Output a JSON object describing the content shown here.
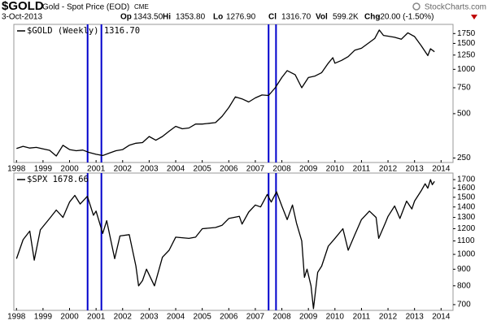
{
  "header": {
    "symbol": "$GOLD",
    "name": "Gold - Spot Price (EOD)",
    "exchange": "CME",
    "date": "3-Oct-2013",
    "quote": [
      {
        "label": "Op",
        "value": "1343.50"
      },
      {
        "label": "Hi",
        "value": "1353.80"
      },
      {
        "label": "Lo",
        "value": "1276.90"
      },
      {
        "label": "Cl",
        "value": "1316.70"
      },
      {
        "label": "Vol",
        "value": "599.2K"
      },
      {
        "label": "Chg",
        "value": "-20.00 (-1.50%)"
      }
    ],
    "watermark": "StockCharts.com"
  },
  "chart_data": [
    {
      "type": "line",
      "log_scale": true,
      "series": [
        {
          "name": "$GOLD (Weekly) 1316.70",
          "color": "#000000",
          "x": [
            1998.0,
            1998.25,
            1998.5,
            1998.75,
            1999.0,
            1999.25,
            1999.5,
            1999.75,
            2000.0,
            2000.25,
            2000.5,
            2000.75,
            2001.0,
            2001.25,
            2001.5,
            2001.75,
            2002.0,
            2002.25,
            2002.5,
            2002.75,
            2003.0,
            2003.25,
            2003.5,
            2003.75,
            2004.0,
            2004.25,
            2004.5,
            2004.75,
            2005.0,
            2005.25,
            2005.5,
            2005.75,
            2006.0,
            2006.25,
            2006.5,
            2006.75,
            2007.0,
            2007.25,
            2007.5,
            2007.75,
            2008.0,
            2008.2,
            2008.5,
            2008.75,
            2009.0,
            2009.25,
            2009.5,
            2009.75,
            2009.92,
            2010.0,
            2010.25,
            2010.5,
            2010.75,
            2011.0,
            2011.25,
            2011.5,
            2011.67,
            2011.83,
            2012.0,
            2012.25,
            2012.5,
            2012.75,
            2013.0,
            2013.25,
            2013.5,
            2013.6,
            2013.75
          ],
          "values": [
            290,
            300,
            292,
            295,
            288,
            282,
            258,
            305,
            285,
            280,
            283,
            272,
            265,
            260,
            270,
            280,
            285,
            305,
            315,
            318,
            350,
            330,
            350,
            380,
            410,
            395,
            400,
            425,
            425,
            430,
            435,
            480,
            550,
            650,
            630,
            600,
            640,
            670,
            665,
            750,
            880,
            980,
            920,
            750,
            880,
            900,
            950,
            1100,
            1200,
            1100,
            1150,
            1220,
            1350,
            1390,
            1500,
            1620,
            1850,
            1700,
            1680,
            1650,
            1600,
            1770,
            1670,
            1450,
            1240,
            1380,
            1316.7
          ]
        }
      ],
      "xlim": [
        1997.9,
        2014.45
      ],
      "xticks": [
        1998,
        1999,
        2000,
        2001,
        2002,
        2003,
        2004,
        2005,
        2006,
        2007,
        2008,
        2009,
        2010,
        2011,
        2012,
        2013,
        2014
      ],
      "ylim": [
        233,
        2020
      ],
      "yticks": [
        250,
        500,
        750,
        1000,
        1250,
        1500,
        1750
      ],
      "vlines": {
        "color": "#0000cc",
        "x": [
          2000.68,
          2001.2,
          2007.5,
          2007.78
        ]
      }
    },
    {
      "type": "line",
      "log_scale": true,
      "series": [
        {
          "name": "$SPX 1678.66",
          "color": "#000000",
          "x": [
            1998.0,
            1998.25,
            1998.5,
            1998.67,
            1998.9,
            1999.25,
            1999.5,
            1999.75,
            2000.0,
            2000.2,
            2000.4,
            2000.67,
            2000.9,
            2001.0,
            2001.25,
            2001.4,
            2001.7,
            2001.9,
            2002.25,
            2002.5,
            2002.6,
            2002.75,
            2002.9,
            2003.2,
            2003.5,
            2003.75,
            2004.0,
            2004.5,
            2004.75,
            2005.0,
            2005.5,
            2005.75,
            2006.0,
            2006.4,
            2006.5,
            2006.75,
            2007.0,
            2007.2,
            2007.45,
            2007.6,
            2007.8,
            2008.0,
            2008.2,
            2008.4,
            2008.55,
            2008.75,
            2008.85,
            2008.95,
            2009.1,
            2009.19,
            2009.35,
            2009.5,
            2009.75,
            2010.0,
            2010.3,
            2010.5,
            2010.75,
            2011.0,
            2011.3,
            2011.55,
            2011.65,
            2011.9,
            2012.0,
            2012.25,
            2012.45,
            2012.7,
            2012.9,
            2013.0,
            2013.25,
            2013.4,
            2013.5,
            2013.6,
            2013.67,
            2013.75
          ],
          "values": [
            970,
            1110,
            1180,
            960,
            1190,
            1290,
            1370,
            1300,
            1450,
            1520,
            1430,
            1510,
            1320,
            1360,
            1160,
            1270,
            970,
            1140,
            1150,
            920,
            800,
            830,
            900,
            800,
            980,
            1030,
            1130,
            1120,
            1130,
            1200,
            1210,
            1230,
            1290,
            1310,
            1240,
            1350,
            1420,
            1400,
            1530,
            1450,
            1560,
            1410,
            1280,
            1420,
            1250,
            1100,
            850,
            900,
            800,
            680,
            880,
            920,
            1060,
            1120,
            1200,
            1030,
            1150,
            1280,
            1360,
            1300,
            1120,
            1250,
            1310,
            1410,
            1290,
            1460,
            1380,
            1460,
            1570,
            1650,
            1600,
            1700,
            1640,
            1678.66
          ]
        }
      ],
      "xlim": [
        1997.9,
        2014.45
      ],
      "xticks": [
        1998,
        1999,
        2000,
        2001,
        2002,
        2003,
        2004,
        2005,
        2006,
        2007,
        2008,
        2009,
        2010,
        2011,
        2012,
        2013,
        2014
      ],
      "ylim": [
        672,
        1781
      ],
      "yticks": [
        700,
        800,
        900,
        1000,
        1100,
        1200,
        1300,
        1400,
        1500,
        1600,
        1700
      ],
      "vlines": {
        "color": "#0000cc",
        "x": [
          2000.68,
          2001.2,
          2007.5,
          2007.78
        ]
      }
    }
  ]
}
